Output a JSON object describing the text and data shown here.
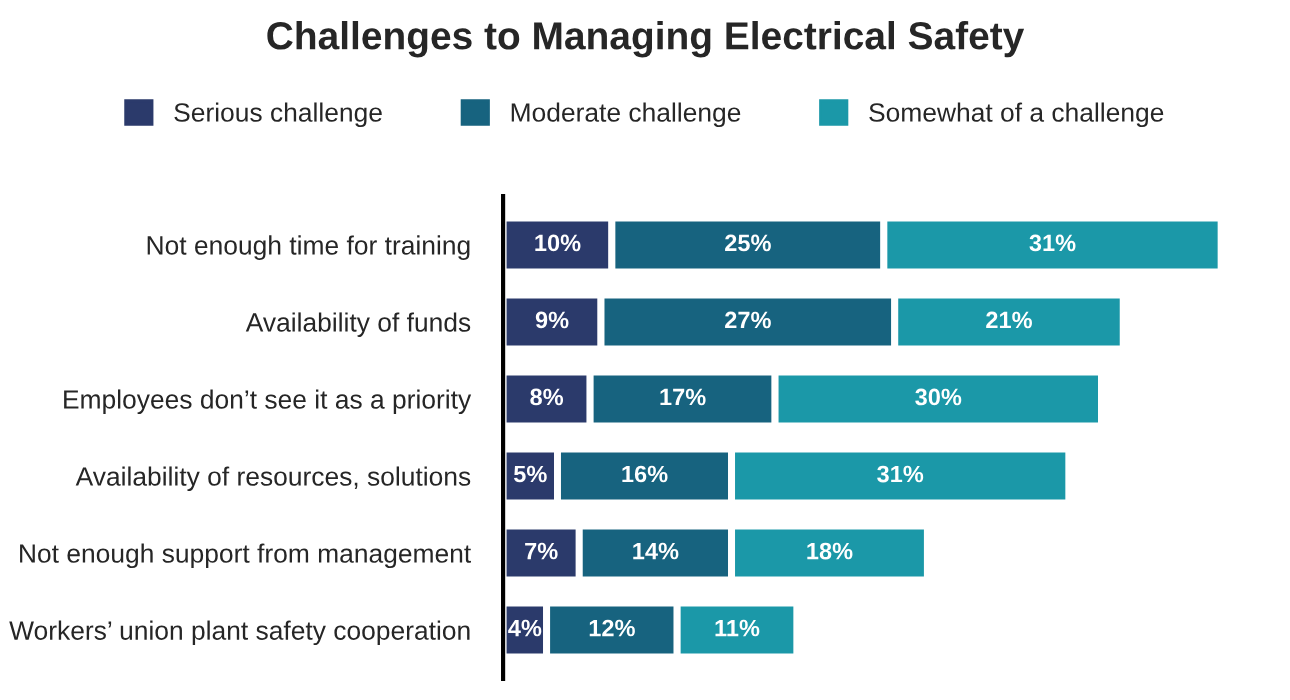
{
  "chart_data": {
    "type": "bar",
    "title": "Challenges to Managing Electrical Safety",
    "orientation": "horizontal",
    "stacked": true,
    "legend": "top",
    "grid": false,
    "tick_labels": "y",
    "categories": [
      "Not enough time for training",
      "Availability of funds",
      "Employees don’t see it as a priority",
      "Availability of resources, solutions",
      "Not enough support from management",
      "Workers’ union plant safety cooperation"
    ],
    "series": [
      {
        "name": "Serious challenge",
        "color": "#2b3a6b",
        "values": [
          10,
          9,
          8,
          5,
          7,
          4
        ],
        "value_labels": [
          "10%",
          "9%",
          "8%",
          "5%",
          "7%",
          "4%"
        ]
      },
      {
        "name": "Moderate challenge",
        "color": "#17637f",
        "values": [
          25,
          27,
          17,
          16,
          14,
          12
        ],
        "value_labels": [
          "25%",
          "27%",
          "17%",
          "16%",
          "14%",
          "12%"
        ]
      },
      {
        "name": "Somewhat of a challenge",
        "color": "#1b98a8",
        "values": [
          31,
          21,
          30,
          31,
          18,
          11
        ],
        "value_labels": [
          "31%",
          "21%",
          "30%",
          "31%",
          "18%",
          "11%"
        ]
      }
    ]
  }
}
